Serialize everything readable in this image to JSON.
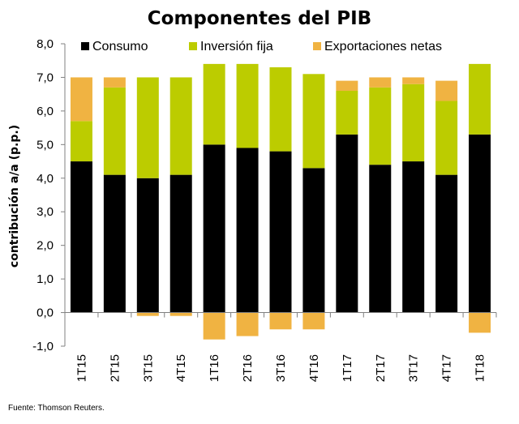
{
  "chart_data": {
    "type": "bar",
    "stacked": true,
    "title": "Componentes del PIB",
    "xlabel": "",
    "ylabel": "contribución a/a (p.p.)",
    "ylim": [
      -1,
      8
    ],
    "yticks": [
      "-1,0",
      "0,0",
      "1,0",
      "2,0",
      "3,0",
      "4,0",
      "5,0",
      "6,0",
      "7,0",
      "8,0"
    ],
    "categories": [
      "1T15",
      "2T15",
      "3T15",
      "4T15",
      "1T16",
      "2T16",
      "3T16",
      "4T16",
      "1T17",
      "2T17",
      "3T17",
      "4T17",
      "1T18"
    ],
    "series": [
      {
        "name": "Consumo",
        "color": "#000000",
        "values": [
          4.5,
          4.1,
          4.0,
          4.1,
          5.0,
          4.9,
          4.8,
          4.3,
          5.3,
          4.4,
          4.5,
          4.1,
          5.3
        ]
      },
      {
        "name": "Inversión fija",
        "color": "#bccc00",
        "values": [
          1.2,
          2.6,
          3.0,
          2.9,
          2.4,
          2.5,
          2.5,
          2.8,
          1.3,
          2.3,
          2.3,
          2.2,
          2.1
        ]
      },
      {
        "name": "Exportaciones netas",
        "color": "#f0b342",
        "values": [
          1.3,
          0.3,
          -0.1,
          -0.1,
          -0.8,
          -0.7,
          -0.5,
          -0.5,
          0.3,
          0.3,
          0.2,
          0.6,
          -0.6
        ]
      }
    ],
    "legend_position": "top",
    "grid": false
  },
  "footer": {
    "source": "Fuente: Thomson Reuters."
  }
}
